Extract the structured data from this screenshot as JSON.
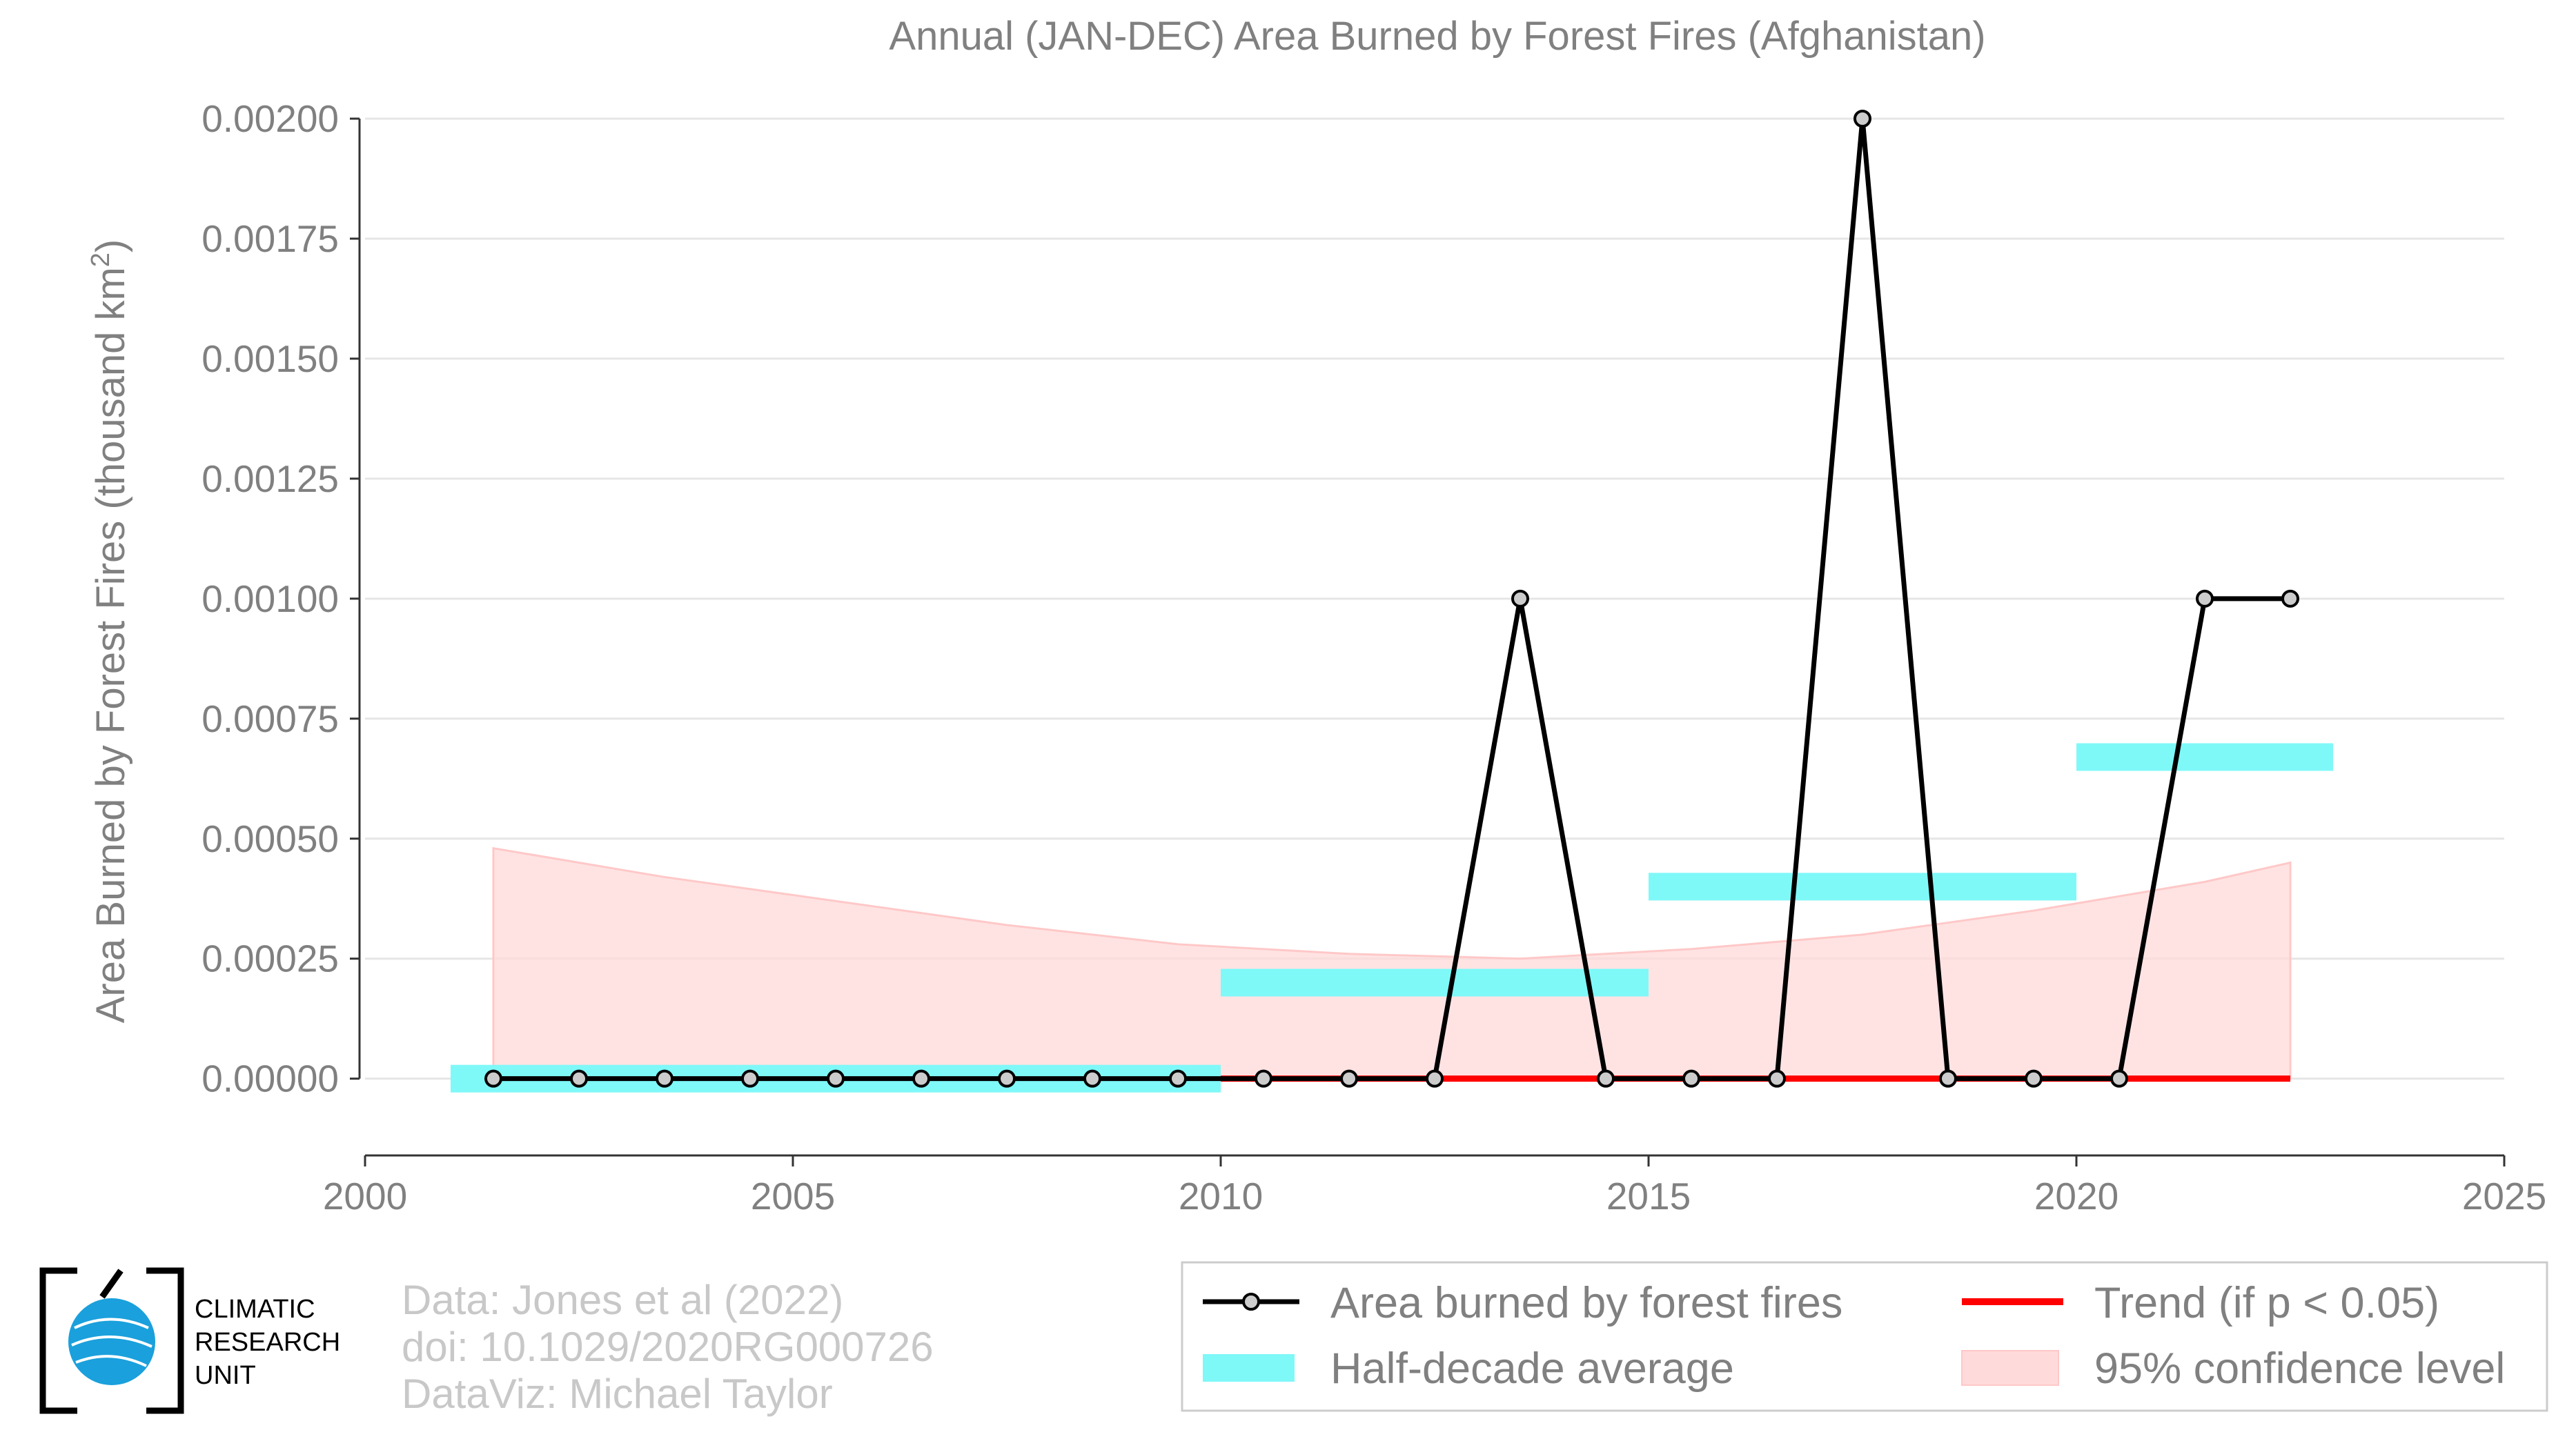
{
  "chart_data": {
    "type": "line",
    "title": "Annual (JAN-DEC) Area Burned by Forest Fires (Afghanistan)",
    "ylabel_main": "Area Burned by Forest Fires (thousand km",
    "ylabel_sup": "2",
    "ylabel_close": ")",
    "xlim": [
      2000,
      2025
    ],
    "ylim": [
      -0.00016,
      0.002
    ],
    "x_ticks": [
      2000,
      2005,
      2010,
      2015,
      2020,
      2025
    ],
    "y_ticks": [
      0.0,
      0.00025,
      0.0005,
      0.00075,
      0.001,
      0.00125,
      0.0015,
      0.00175,
      0.002
    ],
    "y_tick_labels": [
      "0.00000",
      "0.00025",
      "0.00050",
      "0.00075",
      "0.00100",
      "0.00125",
      "0.00150",
      "0.00175",
      "0.00200"
    ],
    "grid": true,
    "series": [
      {
        "name": "Area burned by forest fires",
        "x": [
          2001.5,
          2002.5,
          2003.5,
          2004.5,
          2005.5,
          2006.5,
          2007.5,
          2008.5,
          2009.5,
          2010.5,
          2011.5,
          2012.5,
          2013.5,
          2014.5,
          2015.5,
          2016.5,
          2017.5,
          2018.5,
          2019.5,
          2020.5,
          2021.5,
          2022.5
        ],
        "values": [
          0,
          0,
          0,
          0,
          0,
          0,
          0,
          0,
          0,
          0,
          0,
          0,
          0.001,
          0,
          0,
          0,
          0.002,
          0,
          0,
          0,
          0.001,
          0.001
        ],
        "color": "#000000"
      }
    ],
    "half_decade_average": {
      "name": "Half-decade average",
      "color": "#7ff8f8",
      "segments": [
        {
          "x0": 2001.0,
          "x1": 2010.0,
          "value": 0.0
        },
        {
          "x0": 2010.0,
          "x1": 2015.0,
          "value": 0.0002
        },
        {
          "x0": 2015.0,
          "x1": 2020.0,
          "value": 0.0004
        },
        {
          "x0": 2020.0,
          "x1": 2023.0,
          "value": 0.00067
        }
      ]
    },
    "trend": {
      "name": "Trend (if p < 0.05)",
      "color": "#ff0000",
      "x": [
        2010.0,
        2022.5
      ],
      "values": [
        0,
        0
      ]
    },
    "confidence": {
      "name": "95% confidence level",
      "color": "#ffdada",
      "x": [
        2001.5,
        2003.5,
        2005.5,
        2007.5,
        2009.5,
        2011.5,
        2013.5,
        2015.5,
        2017.5,
        2019.5,
        2021.5,
        2022.5
      ],
      "upper": [
        0.00048,
        0.00042,
        0.00037,
        0.00032,
        0.00028,
        0.00026,
        0.00025,
        0.00027,
        0.0003,
        0.00035,
        0.00041,
        0.00045
      ],
      "lower": [
        0,
        0,
        0,
        0,
        0,
        0,
        0,
        0,
        0,
        0,
        0,
        0
      ]
    },
    "legend_placement": "bottom-right"
  },
  "legend": {
    "area_label": "Area burned by forest fires",
    "trend_label": "Trend (if p < 0.05)",
    "half_decade_label": "Half-decade average",
    "confidence_label": "95% confidence level"
  },
  "credits": {
    "line1": "Data: Jones et al (2022)",
    "line2": "doi: 10.1029/2020RG000726",
    "line3": "DataViz: Michael Taylor"
  },
  "logo": {
    "line1": "CLIMATIC",
    "line2": "RESEARCH",
    "line3": "UNIT"
  }
}
